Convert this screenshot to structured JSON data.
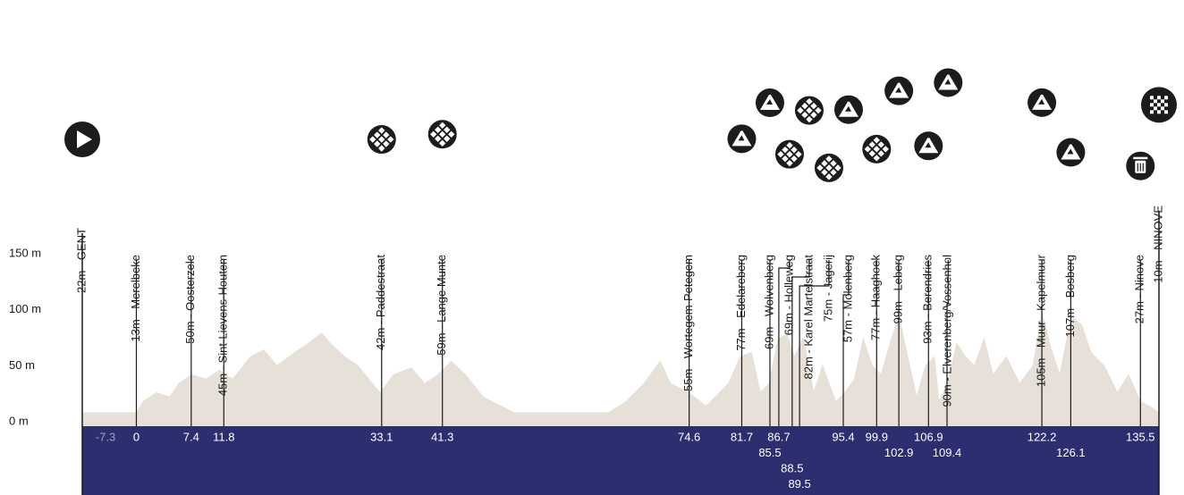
{
  "chart_data": {
    "type": "area",
    "xlim": [
      -7.3,
      138.0
    ],
    "ylim": [
      -4,
      150
    ],
    "yticks": [
      {
        "value": 0,
        "label": "0 m"
      },
      {
        "value": 50,
        "label": "50 m"
      },
      {
        "value": 100,
        "label": "100 m"
      },
      {
        "value": 150,
        "label": "150 m"
      }
    ],
    "color": "#e6e0d9",
    "band_color": "#2c2e6f",
    "x": [
      -7.3,
      -5.1,
      -2.7,
      -0.5,
      0.9,
      2.7,
      4.5,
      5.7,
      7.5,
      9.4,
      11.2,
      13.0,
      15.4,
      17.2,
      19.0,
      21.4,
      23.2,
      25.0,
      26.2,
      28.1,
      29.9,
      31.7,
      32.9,
      34.7,
      37.1,
      38.9,
      40.7,
      42.5,
      44.4,
      46.8,
      49.2,
      51.6,
      54.0,
      56.4,
      60.0,
      63.7,
      66.1,
      68.5,
      70.7,
      72.1,
      74.5,
      76.9,
      78.1,
      79.9,
      81.5,
      83.0,
      84.2,
      85.4,
      86.6,
      87.8,
      88.8,
      90.0,
      91.4,
      92.6,
      94.4,
      95.6,
      96.9,
      98.1,
      99.3,
      100.5,
      101.7,
      102.9,
      104.1,
      105.3,
      106.5,
      107.7,
      108.3,
      109.5,
      110.7,
      111.9,
      113.1,
      114.4,
      115.6,
      117.4,
      119.2,
      121.0,
      122.2,
      123.4,
      124.6,
      126.2,
      127.6,
      128.8,
      130.6,
      132.4,
      133.9,
      135.5,
      136.7,
      138.0
    ],
    "values": [
      8,
      5,
      3,
      2,
      18,
      26,
      22,
      34,
      42,
      38,
      46,
      38,
      58,
      64,
      50,
      62,
      70,
      79,
      70,
      58,
      50,
      35,
      26,
      42,
      48,
      34,
      42,
      54,
      42,
      22,
      14,
      6,
      2,
      3,
      3,
      8,
      18,
      34,
      54,
      34,
      26,
      14,
      22,
      34,
      58,
      62,
      26,
      34,
      74,
      78,
      58,
      75,
      26,
      50,
      18,
      26,
      38,
      74,
      50,
      42,
      70,
      94,
      58,
      22,
      50,
      58,
      18,
      34,
      70,
      58,
      50,
      74,
      42,
      58,
      34,
      50,
      98,
      66,
      42,
      94,
      86,
      62,
      50,
      26,
      42,
      18,
      14,
      8
    ],
    "waypoints": [
      {
        "km": -7.3,
        "label": "22m - GENT",
        "icon": "start"
      },
      {
        "km": 0,
        "label": "13m - Merelbeke"
      },
      {
        "km": 7.4,
        "label": "50m - Oosterzele"
      },
      {
        "km": 11.8,
        "label": "45m - Sint-Lievens-Houtem"
      },
      {
        "km": 33.1,
        "label": "42m - Paddestraat",
        "icon": "cobbles"
      },
      {
        "km": 41.3,
        "label": "59m - Lange Munte",
        "icon": "cobbles"
      },
      {
        "km": 74.6,
        "label": "55m - Wortegem-Petegem"
      },
      {
        "km": 81.7,
        "label": "77m - Edelareberg",
        "icon": "climb"
      },
      {
        "km": 85.5,
        "label": "69m - Wolvenberg",
        "icon": "climb"
      },
      {
        "km": 86.7,
        "label": "69m - Holleweg",
        "icon": "cobbles"
      },
      {
        "km": 88.5,
        "label": "82m - Karel Martelstraat",
        "icon": "cobbles"
      },
      {
        "km": 89.5,
        "label": "75m - Jagerij",
        "icon": "cobbles"
      },
      {
        "km": 95.4,
        "label": "57m - Molenberg",
        "icon": "climb"
      },
      {
        "km": 99.9,
        "label": "77m - Haaghoek",
        "icon": "cobbles"
      },
      {
        "km": 102.9,
        "label": "99m - Leberg",
        "icon": "climb"
      },
      {
        "km": 106.9,
        "label": "93m - Berendries",
        "icon": "climb"
      },
      {
        "km": 109.4,
        "label": "90m - Elverenberg/Vossenhol",
        "icon": "climb"
      },
      {
        "km": 122.2,
        "label": "105m - Muur - Kapelmuur",
        "icon": "climb"
      },
      {
        "km": 126.1,
        "label": "107m - Bosberg",
        "icon": "climb"
      },
      {
        "km": 135.5,
        "label": "27m - Ninove",
        "icon": "waste"
      },
      {
        "label": "10m - NINOVE",
        "icon": "finish"
      }
    ]
  }
}
